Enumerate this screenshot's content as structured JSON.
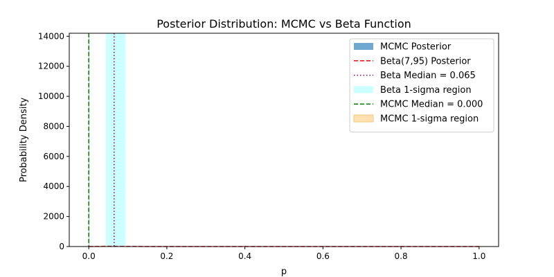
{
  "chart_data": {
    "type": "line",
    "title": "Posterior Distribution: MCMC vs Beta Function",
    "xlabel": "p",
    "ylabel": "Probability Density",
    "xlim": [
      -0.05,
      1.05
    ],
    "ylim": [
      0,
      14200
    ],
    "xticks": [
      0.0,
      0.2,
      0.4,
      0.6,
      0.8,
      1.0
    ],
    "xtick_labels": [
      "0.0",
      "0.2",
      "0.4",
      "0.6",
      "0.8",
      "1.0"
    ],
    "yticks": [
      0,
      2000,
      4000,
      6000,
      8000,
      10000,
      12000,
      14000
    ],
    "ytick_labels": [
      "0",
      "2000",
      "4000",
      "6000",
      "8000",
      "10000",
      "12000",
      "14000"
    ],
    "grid": false,
    "legend_position": "top-right",
    "series": [
      {
        "name": "MCMC Posterior",
        "kind": "histogram",
        "color": "#6fa8d0",
        "bins": [
          {
            "x0": 0.0,
            "x1": 0.0001,
            "density": 14200
          }
        ]
      },
      {
        "name": "Beta(7,95) Posterior",
        "kind": "curve",
        "color": "#ff0000",
        "style": "dashed",
        "x": [
          0.0,
          0.02,
          0.04,
          0.06,
          0.08,
          0.1,
          0.15,
          0.2,
          0.3,
          0.5,
          1.0
        ],
        "y": [
          0,
          4.6,
          15.8,
          17.9,
          12.6,
          6.7,
          1.0,
          0.1,
          0,
          0,
          0
        ]
      },
      {
        "name": "Beta Median = 0.065",
        "kind": "vline",
        "color": "#800080",
        "style": "dotted",
        "x": 0.065
      },
      {
        "name": "Beta 1-sigma region",
        "kind": "vspan",
        "color": "#ccffff",
        "x0": 0.044,
        "x1": 0.094
      },
      {
        "name": "MCMC Median = 0.000",
        "kind": "vline",
        "color": "#008000",
        "style": "dashed",
        "x": 0.0
      },
      {
        "name": "MCMC 1-sigma region",
        "kind": "vspan",
        "color": "#ffe0b0",
        "x0": 0.0,
        "x1": 0.0
      }
    ]
  }
}
